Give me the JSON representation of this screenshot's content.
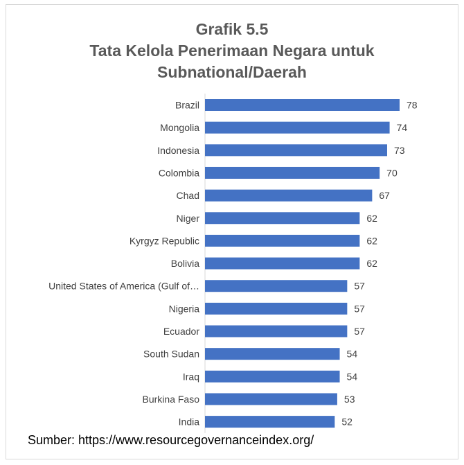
{
  "chart_data": {
    "type": "bar",
    "orientation": "horizontal",
    "title_lines": [
      "Grafik 5.5",
      "Tata Kelola Penerimaan Negara untuk",
      "Subnational/Daerah"
    ],
    "categories": [
      "Brazil",
      "Mongolia",
      "Indonesia",
      "Colombia",
      "Chad",
      "Niger",
      "Kyrgyz Republic",
      "Bolivia",
      "United States of America (Gulf of…",
      "Nigeria",
      "Ecuador",
      "South Sudan",
      "Iraq",
      "Burkina Faso",
      "India"
    ],
    "values": [
      78,
      74,
      73,
      70,
      67,
      62,
      62,
      62,
      57,
      57,
      57,
      54,
      54,
      53,
      52
    ],
    "xlim": [
      0,
      78
    ],
    "data_labels": true,
    "bar_color": "#4472C4",
    "legend": "none",
    "grid": false
  },
  "footer": {
    "source": "Sumber: https://www.resourcegovernanceindex.org/"
  }
}
